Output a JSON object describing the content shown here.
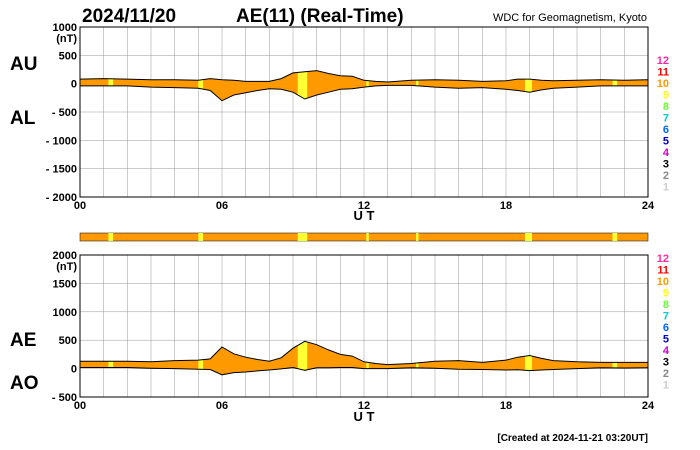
{
  "header": {
    "date": "2024/11/20",
    "title": "AE(11) (Real-Time)",
    "source": "WDC for Geomagnetism, Kyoto"
  },
  "footer": {
    "created": "[Created at 2024-11-21 03:20UT]"
  },
  "station_count_legend": {
    "labels": [
      "12",
      "11",
      "10",
      "9",
      "8",
      "7",
      "6",
      "5",
      "4",
      "3",
      "2",
      "1"
    ],
    "colors": [
      "#ff2aa8",
      "#ff0000",
      "#ff9900",
      "#ffff00",
      "#66ff33",
      "#00cccc",
      "#0066ff",
      "#0000cc",
      "#cc00cc",
      "#000000",
      "#888888",
      "#cccccc"
    ]
  },
  "colors": {
    "fill": "#ff9900",
    "low_station_highlight": "#ffff33",
    "grid": "#999999",
    "line": "#000000"
  },
  "chart_data": [
    {
      "type": "area",
      "panel": "AU/AL",
      "series_labels": [
        "AU",
        "AL"
      ],
      "ylabel_unit": "(nT)",
      "xlabel": "U T",
      "ylim": [
        -2000,
        1000
      ],
      "yticks": [
        "1000",
        "500",
        "0",
        "- 500",
        "- 1000",
        "- 1500",
        "- 2000"
      ],
      "ytick_values": [
        1000,
        500,
        0,
        -500,
        -1000,
        -1500,
        -2000
      ],
      "xlim": [
        0,
        24
      ],
      "xticks": [
        "00",
        "06",
        "12",
        "18",
        "24"
      ],
      "xtick_values": [
        0,
        6,
        12,
        18,
        24
      ],
      "grid": true,
      "series": [
        {
          "name": "AU",
          "x": [
            0,
            1,
            2,
            3,
            4,
            5,
            5.5,
            6,
            6.5,
            7,
            7.5,
            8,
            8.5,
            9,
            9.5,
            10,
            10.5,
            11,
            11.5,
            12,
            12.5,
            13,
            14,
            15,
            16,
            17,
            18,
            18.5,
            19,
            19.5,
            20,
            21,
            22,
            23,
            24
          ],
          "values": [
            80,
            90,
            80,
            70,
            70,
            60,
            90,
            70,
            60,
            40,
            40,
            40,
            90,
            190,
            210,
            230,
            180,
            140,
            130,
            60,
            40,
            30,
            60,
            70,
            60,
            40,
            50,
            80,
            80,
            60,
            50,
            60,
            70,
            60,
            70
          ]
        },
        {
          "name": "AL",
          "x": [
            0,
            1,
            2,
            3,
            4,
            5,
            5.5,
            6,
            6.5,
            7,
            7.5,
            8,
            8.5,
            9,
            9.5,
            10,
            10.5,
            11,
            11.5,
            12,
            12.5,
            13,
            14,
            15,
            16,
            17,
            18,
            18.5,
            19,
            19.5,
            20,
            21,
            22,
            23,
            24
          ],
          "values": [
            -40,
            -40,
            -40,
            -60,
            -70,
            -80,
            -120,
            -300,
            -200,
            -160,
            -120,
            -90,
            -100,
            -150,
            -270,
            -200,
            -150,
            -100,
            -90,
            -60,
            -40,
            -30,
            -30,
            -60,
            -80,
            -70,
            -100,
            -120,
            -150,
            -110,
            -80,
            -60,
            -40,
            -40,
            -40
          ]
        }
      ]
    },
    {
      "type": "area",
      "panel": "AE/AO",
      "series_labels": [
        "AE",
        "AO"
      ],
      "ylabel_unit": "(nT)",
      "xlabel": "U T",
      "ylim": [
        -500,
        2000
      ],
      "yticks": [
        "2000",
        "1500",
        "1000",
        "500",
        "0",
        "- 500"
      ],
      "ytick_values": [
        2000,
        1500,
        1000,
        500,
        0,
        -500
      ],
      "xlim": [
        0,
        24
      ],
      "xticks": [
        "00",
        "06",
        "12",
        "18",
        "24"
      ],
      "xtick_values": [
        0,
        6,
        12,
        18,
        24
      ],
      "grid": true,
      "series": [
        {
          "name": "AE",
          "x": [
            0,
            1,
            2,
            3,
            4,
            5,
            5.5,
            6,
            6.5,
            7,
            7.5,
            8,
            8.5,
            9,
            9.5,
            10,
            10.5,
            11,
            11.5,
            12,
            12.5,
            13,
            14,
            15,
            16,
            17,
            18,
            18.5,
            19,
            19.5,
            20,
            21,
            22,
            23,
            24
          ],
          "values": [
            130,
            130,
            130,
            120,
            140,
            150,
            170,
            380,
            260,
            200,
            160,
            130,
            190,
            360,
            480,
            420,
            330,
            250,
            220,
            120,
            90,
            70,
            90,
            130,
            140,
            110,
            150,
            200,
            230,
            180,
            140,
            120,
            110,
            110,
            110
          ]
        },
        {
          "name": "AO",
          "x": [
            0,
            1,
            2,
            3,
            4,
            5,
            5.5,
            6,
            6.5,
            7,
            7.5,
            8,
            8.5,
            9,
            9.5,
            10,
            10.5,
            11,
            11.5,
            12,
            12.5,
            13,
            14,
            15,
            16,
            17,
            18,
            18.5,
            19,
            19.5,
            20,
            21,
            22,
            23,
            24
          ],
          "values": [
            20,
            20,
            20,
            5,
            0,
            -10,
            -15,
            -110,
            -70,
            -60,
            -40,
            -25,
            -5,
            20,
            -30,
            15,
            15,
            20,
            20,
            0,
            0,
            0,
            15,
            5,
            -10,
            -15,
            -25,
            -20,
            -35,
            -25,
            -15,
            0,
            15,
            10,
            15
          ]
        }
      ]
    }
  ],
  "station_availability": {
    "low_station_intervals": [
      [
        1.2,
        1.4
      ],
      [
        5.0,
        5.2
      ],
      [
        9.2,
        9.6
      ],
      [
        12.1,
        12.2
      ],
      [
        14.2,
        14.3
      ],
      [
        18.8,
        19.1
      ],
      [
        22.5,
        22.7
      ]
    ]
  }
}
